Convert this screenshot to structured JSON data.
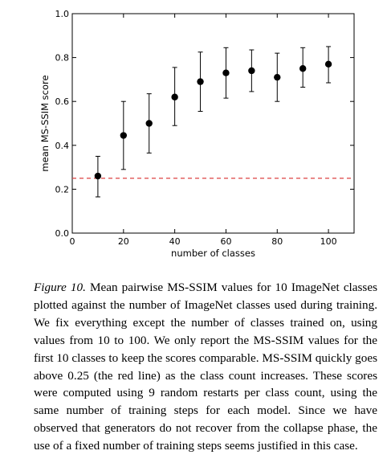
{
  "chart_data": {
    "type": "scatter",
    "title": "",
    "xlabel": "number of classes",
    "ylabel": "mean MS-SSIM score",
    "xlim": [
      0,
      110
    ],
    "ylim": [
      0.0,
      1.0
    ],
    "xticks": [
      0,
      20,
      40,
      60,
      80,
      100
    ],
    "xtick_labels": [
      "0",
      "20",
      "40",
      "60",
      "80",
      "100"
    ],
    "yticks": [
      0.0,
      0.2,
      0.4,
      0.6,
      0.8,
      1.0
    ],
    "ytick_labels": [
      "0.0",
      "0.2",
      "0.4",
      "0.6",
      "0.8",
      "1.0"
    ],
    "grid": false,
    "series": [
      {
        "name": "mean MS-SSIM",
        "color": "#000000",
        "x": [
          10,
          20,
          30,
          40,
          50,
          60,
          70,
          80,
          90,
          100
        ],
        "y": [
          0.26,
          0.445,
          0.5,
          0.62,
          0.69,
          0.73,
          0.74,
          0.71,
          0.75,
          0.77
        ],
        "err_low": [
          0.165,
          0.29,
          0.365,
          0.49,
          0.555,
          0.615,
          0.645,
          0.6,
          0.665,
          0.685
        ],
        "err_high": [
          0.35,
          0.6,
          0.635,
          0.755,
          0.825,
          0.845,
          0.835,
          0.82,
          0.845,
          0.85
        ]
      }
    ],
    "reference_line": {
      "y": 0.25,
      "color": "#dd4444",
      "style": "dashed"
    }
  },
  "caption": {
    "label": "Figure 10.",
    "text": " Mean pairwise MS-SSIM values for 10 ImageNet classes plotted against the number of ImageNet classes used during training.  We fix everything except the number of classes trained on, using values from 10 to 100.  We only report the MS-SSIM values for the first 10 classes to keep the scores comparable. MS-SSIM quickly goes above 0.25 (the red line) as the class count increases.  These scores were computed using 9 random restarts per class count, using the same number of training steps for each model.  Since we have observed that generators do not recover from the collapse phase, the use of a fixed number of training steps seems justified in this case."
  }
}
